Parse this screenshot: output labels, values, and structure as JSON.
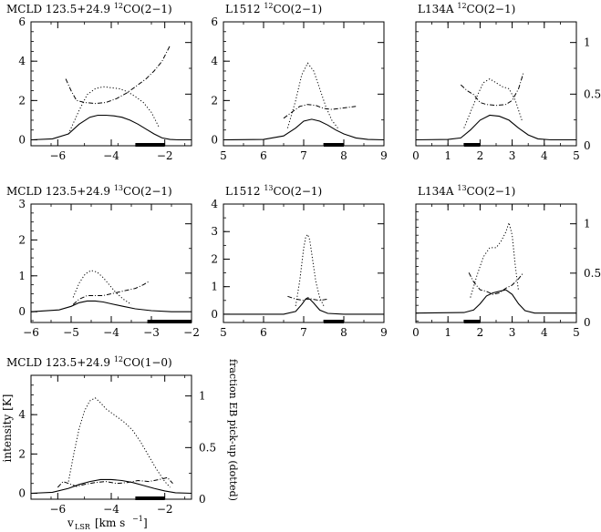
{
  "figure": {
    "ylabel": "intensity [K]",
    "ylabel_right": "fraction EB pick-up (dotted)",
    "xlabel_main": "v",
    "xlabel_sub": "LSR",
    "xlabel_unit": "[km s",
    "xlabel_exp": "−1",
    "xlabel_close": "]"
  },
  "chart_data": [
    {
      "type": "line",
      "title_source": "MCLD 123.5+24.9",
      "title_iso": "12",
      "title_line": "CO(2−1)",
      "xlim": [
        -7,
        -1
      ],
      "ylim": [
        -0.3,
        6
      ],
      "right_ylim": [
        0,
        1.2
      ],
      "xticks": [
        -6,
        -4,
        -2
      ],
      "yticks": [
        0,
        2,
        4,
        6
      ],
      "right_yticks": [],
      "show_left_labels": true,
      "show_right_labels": false,
      "bar": [
        -3.1,
        -2.0
      ],
      "series": [
        {
          "style": "solid",
          "axis": "left",
          "x": [
            -7,
            -6.2,
            -5.6,
            -5.2,
            -4.8,
            -4.5,
            -4.2,
            -3.9,
            -3.6,
            -3.3,
            -3.0,
            -2.7,
            -2.4,
            -2.1,
            -1.8,
            -1.5,
            -1
          ],
          "y": [
            0.0,
            0.05,
            0.3,
            0.8,
            1.15,
            1.25,
            1.25,
            1.22,
            1.15,
            1.0,
            0.8,
            0.55,
            0.3,
            0.1,
            0.02,
            0.0,
            0.0
          ]
        },
        {
          "style": "dotted",
          "axis": "left",
          "x": [
            -5.6,
            -5.2,
            -4.9,
            -4.6,
            -4.3,
            -4.0,
            -3.7,
            -3.4,
            -3.1,
            -2.8,
            -2.5,
            -2.2
          ],
          "y": [
            0.3,
            1.5,
            2.3,
            2.6,
            2.7,
            2.65,
            2.6,
            2.45,
            2.2,
            1.9,
            1.4,
            0.6
          ]
        },
        {
          "style": "dashdot",
          "axis": "left",
          "x": [
            -5.7,
            -5.5,
            -5.3,
            -5.0,
            -4.6,
            -4.2,
            -3.8,
            -3.4,
            -3.0,
            -2.7,
            -2.4,
            -2.1,
            -1.8
          ],
          "y": [
            3.1,
            2.5,
            2.0,
            1.9,
            1.85,
            1.9,
            2.1,
            2.4,
            2.8,
            3.1,
            3.5,
            4.0,
            4.8
          ]
        }
      ]
    },
    {
      "type": "line",
      "title_source": "L1512",
      "title_iso": "12",
      "title_line": "CO(2−1)",
      "xlim": [
        5,
        9
      ],
      "ylim": [
        -0.3,
        6
      ],
      "right_ylim": [
        0,
        1.2
      ],
      "xticks": [
        5,
        6,
        7,
        8,
        9
      ],
      "yticks": [
        0,
        2,
        4,
        6
      ],
      "right_yticks": [],
      "show_left_labels": true,
      "show_right_labels": false,
      "bar": [
        7.5,
        8.0
      ],
      "series": [
        {
          "style": "solid",
          "axis": "left",
          "x": [
            5,
            6.0,
            6.5,
            6.8,
            7.0,
            7.2,
            7.4,
            7.6,
            7.8,
            8.0,
            8.3,
            8.6,
            9
          ],
          "y": [
            0.0,
            0.02,
            0.2,
            0.6,
            0.95,
            1.05,
            0.95,
            0.75,
            0.5,
            0.3,
            0.1,
            0.02,
            0.0
          ]
        },
        {
          "style": "dotted",
          "axis": "left",
          "x": [
            6.6,
            6.8,
            6.95,
            7.1,
            7.25,
            7.4,
            7.55,
            7.7,
            7.85
          ],
          "y": [
            0.6,
            2.0,
            3.3,
            3.9,
            3.5,
            2.6,
            1.7,
            1.0,
            0.6
          ]
        },
        {
          "style": "dashdot",
          "axis": "left",
          "x": [
            6.5,
            6.7,
            6.9,
            7.1,
            7.3,
            7.5,
            7.7,
            7.9,
            8.1,
            8.3
          ],
          "y": [
            1.1,
            1.4,
            1.7,
            1.8,
            1.75,
            1.6,
            1.55,
            1.6,
            1.65,
            1.7
          ]
        }
      ]
    },
    {
      "type": "line",
      "title_source": "L134A",
      "title_iso": "12",
      "title_line": "CO(2−1)",
      "xlim": [
        0,
        5
      ],
      "ylim": [
        -0.3,
        6
      ],
      "right_ylim": [
        0,
        1.2
      ],
      "xticks": [
        0,
        1,
        2,
        3,
        4,
        5
      ],
      "yticks": [],
      "right_yticks": [
        0,
        0.5,
        1
      ],
      "show_left_labels": false,
      "show_right_labels": true,
      "bar": [
        1.5,
        2.0
      ],
      "series": [
        {
          "style": "solid",
          "axis": "left",
          "x": [
            0,
            1.0,
            1.4,
            1.7,
            2.0,
            2.3,
            2.6,
            2.9,
            3.2,
            3.5,
            3.8,
            4.2,
            5
          ],
          "y": [
            0.0,
            0.02,
            0.1,
            0.5,
            1.0,
            1.25,
            1.2,
            1.0,
            0.6,
            0.25,
            0.05,
            0.0,
            0.0
          ]
        },
        {
          "style": "dotted",
          "axis": "left",
          "x": [
            1.5,
            1.7,
            1.9,
            2.1,
            2.3,
            2.5,
            2.7,
            2.9,
            3.1,
            3.3
          ],
          "y": [
            0.6,
            1.4,
            2.2,
            2.9,
            3.1,
            2.9,
            2.7,
            2.6,
            2.0,
            1.0
          ]
        },
        {
          "style": "dashdot",
          "axis": "left",
          "x": [
            1.4,
            1.6,
            1.8,
            2.0,
            2.2,
            2.5,
            2.8,
            3.0,
            3.2,
            3.35
          ],
          "y": [
            2.8,
            2.5,
            2.3,
            1.9,
            1.8,
            1.75,
            1.8,
            2.0,
            2.6,
            3.4
          ]
        }
      ]
    },
    {
      "type": "line",
      "title_source": "MCLD 123.5+24.9",
      "title_iso": "13",
      "title_line": "CO(2−1)",
      "xlim": [
        -6,
        -2
      ],
      "ylim": [
        -0.3,
        3
      ],
      "right_ylim": [
        0,
        1.2
      ],
      "xticks": [
        -6,
        -5,
        -4,
        -3,
        -2
      ],
      "yticks": [
        0,
        1,
        2,
        3
      ],
      "right_yticks": [],
      "show_left_labels": true,
      "show_right_labels": false,
      "bar": [
        -3.1,
        -2.0
      ],
      "series": [
        {
          "style": "solid",
          "axis": "left",
          "x": [
            -6,
            -5.3,
            -5.0,
            -4.8,
            -4.6,
            -4.4,
            -4.2,
            -4.0,
            -3.7,
            -3.4,
            -3.0,
            -2.5,
            -2
          ],
          "y": [
            0.0,
            0.05,
            0.15,
            0.25,
            0.3,
            0.3,
            0.27,
            0.22,
            0.15,
            0.08,
            0.03,
            0.0,
            0.0
          ]
        },
        {
          "style": "dotted",
          "axis": "left",
          "x": [
            -4.95,
            -4.8,
            -4.65,
            -4.5,
            -4.35,
            -4.2,
            -4.05,
            -3.9,
            -3.7,
            -3.5
          ],
          "y": [
            0.4,
            0.8,
            1.05,
            1.15,
            1.1,
            0.95,
            0.75,
            0.55,
            0.35,
            0.2
          ]
        },
        {
          "style": "dashdot",
          "axis": "left",
          "x": [
            -4.95,
            -4.8,
            -4.6,
            -4.4,
            -4.2,
            -4.0,
            -3.8,
            -3.6,
            -3.4,
            -3.2,
            -3.05
          ],
          "y": [
            0.2,
            0.35,
            0.45,
            0.45,
            0.45,
            0.5,
            0.55,
            0.6,
            0.65,
            0.75,
            0.85
          ]
        }
      ]
    },
    {
      "type": "line",
      "title_source": "L1512",
      "title_iso": "13",
      "title_line": "CO(2−1)",
      "xlim": [
        5,
        9
      ],
      "ylim": [
        -0.3,
        4
      ],
      "right_ylim": [
        0,
        1.2
      ],
      "xticks": [
        5,
        6,
        7,
        8,
        9
      ],
      "yticks": [
        0,
        1,
        2,
        3,
        4
      ],
      "right_yticks": [],
      "show_left_labels": true,
      "show_right_labels": false,
      "bar": [
        7.5,
        8.0
      ],
      "series": [
        {
          "style": "solid",
          "axis": "left",
          "x": [
            5,
            6.5,
            6.8,
            6.95,
            7.05,
            7.15,
            7.25,
            7.4,
            7.6,
            8.0,
            9
          ],
          "y": [
            0.0,
            0.0,
            0.1,
            0.35,
            0.55,
            0.55,
            0.4,
            0.15,
            0.03,
            0.0,
            0.0
          ]
        },
        {
          "style": "dotted",
          "axis": "left",
          "x": [
            6.8,
            6.9,
            7.0,
            7.05,
            7.1,
            7.15,
            7.2,
            7.3,
            7.4,
            7.5
          ],
          "y": [
            0.3,
            1.2,
            2.4,
            2.8,
            2.9,
            2.7,
            2.2,
            1.2,
            0.6,
            0.3
          ]
        },
        {
          "style": "dashdot",
          "axis": "left",
          "x": [
            6.6,
            6.8,
            7.0,
            7.1,
            7.2,
            7.4,
            7.6
          ],
          "y": [
            0.65,
            0.55,
            0.5,
            0.6,
            0.55,
            0.5,
            0.55
          ]
        }
      ]
    },
    {
      "type": "line",
      "title_source": "L134A",
      "title_iso": "13",
      "title_line": "CO(2−1)",
      "xlim": [
        0,
        5
      ],
      "ylim": [
        -0.3,
        3.5
      ],
      "right_ylim": [
        0,
        1.2
      ],
      "xticks": [
        0,
        1,
        2,
        3,
        4,
        5
      ],
      "yticks": [],
      "right_yticks": [
        0,
        0.5,
        1
      ],
      "show_left_labels": false,
      "show_right_labels": true,
      "bar": [
        1.5,
        2.0
      ],
      "series": [
        {
          "style": "solid",
          "axis": "left",
          "x": [
            0,
            1.5,
            1.8,
            2.0,
            2.2,
            2.4,
            2.6,
            2.8,
            3.0,
            3.2,
            3.4,
            3.7,
            5
          ],
          "y": [
            0.0,
            0.02,
            0.1,
            0.3,
            0.55,
            0.65,
            0.7,
            0.75,
            0.6,
            0.3,
            0.08,
            0.0,
            0.0
          ]
        },
        {
          "style": "dotted",
          "axis": "left",
          "x": [
            1.7,
            1.9,
            2.1,
            2.3,
            2.5,
            2.65,
            2.8,
            2.9,
            3.0,
            3.1,
            3.2
          ],
          "y": [
            0.5,
            1.2,
            1.8,
            2.1,
            2.1,
            2.3,
            2.6,
            2.9,
            2.5,
            1.5,
            0.7
          ]
        },
        {
          "style": "dashdot",
          "axis": "left",
          "x": [
            1.65,
            1.8,
            2.0,
            2.2,
            2.4,
            2.6,
            2.8,
            3.0,
            3.2,
            3.35
          ],
          "y": [
            1.3,
            1.0,
            0.75,
            0.7,
            0.6,
            0.65,
            0.8,
            0.9,
            1.1,
            1.3
          ]
        }
      ]
    },
    {
      "type": "line",
      "title_source": "MCLD 123.5+24.9",
      "title_iso": "12",
      "title_line": "CO(1−0)",
      "xlim": [
        -7,
        -1
      ],
      "ylim": [
        -0.3,
        6
      ],
      "right_ylim": [
        0,
        1.2
      ],
      "xticks": [
        -6,
        -4,
        -2
      ],
      "yticks": [
        0,
        2,
        4
      ],
      "right_yticks": [
        0,
        0.5,
        1
      ],
      "show_left_labels": true,
      "show_right_labels": true,
      "bar": [
        -3.1,
        -2.0
      ],
      "series": [
        {
          "style": "solid",
          "axis": "left",
          "x": [
            -7,
            -6.2,
            -5.6,
            -5.2,
            -4.8,
            -4.4,
            -4.0,
            -3.6,
            -3.2,
            -2.8,
            -2.4,
            -2.0,
            -1.6,
            -1
          ],
          "y": [
            0.0,
            0.05,
            0.25,
            0.45,
            0.6,
            0.7,
            0.7,
            0.65,
            0.55,
            0.4,
            0.25,
            0.12,
            0.03,
            0.0
          ]
        },
        {
          "style": "dotted",
          "axis": "left",
          "x": [
            -5.6,
            -5.4,
            -5.2,
            -5.0,
            -4.8,
            -4.6,
            -4.4,
            -4.2,
            -4.0,
            -3.8,
            -3.5,
            -3.2,
            -2.9,
            -2.6,
            -2.3,
            -2.0,
            -1.8
          ],
          "y": [
            0.6,
            2.0,
            3.3,
            4.2,
            4.7,
            4.85,
            4.6,
            4.3,
            4.1,
            3.9,
            3.6,
            3.2,
            2.6,
            1.9,
            1.2,
            0.6,
            0.3
          ]
        },
        {
          "style": "dashdot",
          "axis": "left",
          "x": [
            -6.0,
            -5.8,
            -5.6,
            -5.3,
            -5.0,
            -4.6,
            -4.2,
            -3.8,
            -3.4,
            -3.0,
            -2.6,
            -2.2,
            -1.9,
            -1.7
          ],
          "y": [
            0.3,
            0.6,
            0.5,
            0.35,
            0.45,
            0.55,
            0.6,
            0.5,
            0.55,
            0.65,
            0.6,
            0.7,
            0.8,
            0.5
          ]
        }
      ]
    }
  ]
}
